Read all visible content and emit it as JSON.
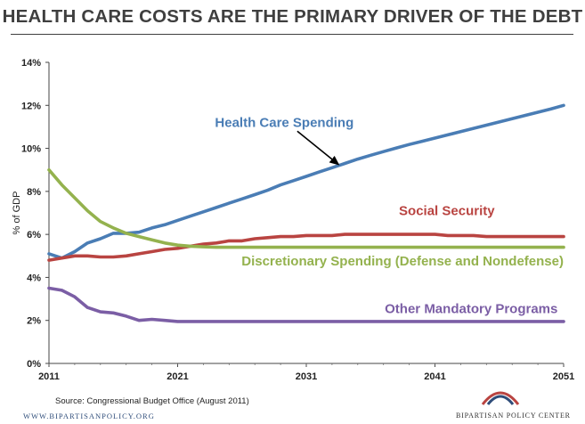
{
  "header": {
    "title": "HEALTH CARE COSTS ARE THE PRIMARY DRIVER OF THE DEBT"
  },
  "chart_data": {
    "type": "line",
    "title": "HEALTH CARE COSTS ARE THE PRIMARY DRIVER OF THE DEBT",
    "xlabel": "",
    "ylabel": "% of GDP",
    "xlim": [
      2011,
      2051
    ],
    "ylim": [
      0,
      14
    ],
    "x_ticks": [
      "2011",
      "2021",
      "2031",
      "2041",
      "2051"
    ],
    "y_ticks": [
      "0%",
      "2%",
      "4%",
      "6%",
      "8%",
      "10%",
      "12%",
      "14%"
    ],
    "grid": false,
    "x": [
      2011,
      2012,
      2013,
      2014,
      2015,
      2016,
      2017,
      2018,
      2019,
      2020,
      2021,
      2022,
      2023,
      2024,
      2025,
      2026,
      2027,
      2028,
      2029,
      2030,
      2031,
      2032,
      2033,
      2034,
      2035,
      2036,
      2037,
      2038,
      2039,
      2040,
      2041,
      2042,
      2043,
      2044,
      2045,
      2046,
      2047,
      2048,
      2049,
      2050,
      2051
    ],
    "series": [
      {
        "name": "Health Care Spending",
        "color": "#4a7db5",
        "values": [
          5.1,
          4.9,
          5.2,
          5.6,
          5.8,
          6.05,
          6.05,
          6.1,
          6.3,
          6.45,
          6.65,
          6.85,
          7.05,
          7.25,
          7.45,
          7.65,
          7.85,
          8.05,
          8.3,
          8.5,
          8.7,
          8.9,
          9.1,
          9.3,
          9.5,
          9.68,
          9.85,
          10.02,
          10.18,
          10.33,
          10.48,
          10.63,
          10.78,
          10.93,
          11.08,
          11.23,
          11.38,
          11.53,
          11.68,
          11.83,
          12.0
        ]
      },
      {
        "name": "Social Security",
        "color": "#b94441",
        "values": [
          4.8,
          4.9,
          5.0,
          5.0,
          4.95,
          4.95,
          5.0,
          5.1,
          5.2,
          5.3,
          5.35,
          5.45,
          5.55,
          5.6,
          5.7,
          5.7,
          5.8,
          5.85,
          5.9,
          5.9,
          5.95,
          5.95,
          5.95,
          6.0,
          6.0,
          6.0,
          6.0,
          6.0,
          6.0,
          6.0,
          6.0,
          5.95,
          5.95,
          5.95,
          5.9,
          5.9,
          5.9,
          5.9,
          5.9,
          5.9,
          5.9
        ]
      },
      {
        "name": "Discretionary Spending (Defense and Nondefense)",
        "color": "#94b24e",
        "values": [
          9.0,
          8.3,
          7.7,
          7.1,
          6.6,
          6.3,
          6.05,
          5.9,
          5.75,
          5.6,
          5.5,
          5.45,
          5.42,
          5.4,
          5.4,
          5.4,
          5.4,
          5.4,
          5.4,
          5.4,
          5.4,
          5.4,
          5.4,
          5.4,
          5.4,
          5.4,
          5.4,
          5.4,
          5.4,
          5.4,
          5.4,
          5.4,
          5.4,
          5.4,
          5.4,
          5.4,
          5.4,
          5.4,
          5.4,
          5.4,
          5.4
        ]
      },
      {
        "name": "Other Mandatory Programs",
        "color": "#7b5ea5",
        "values": [
          3.5,
          3.4,
          3.1,
          2.6,
          2.4,
          2.35,
          2.2,
          2.0,
          2.05,
          2.0,
          1.95,
          1.95,
          1.95,
          1.95,
          1.95,
          1.95,
          1.95,
          1.95,
          1.95,
          1.95,
          1.95,
          1.95,
          1.95,
          1.95,
          1.95,
          1.95,
          1.95,
          1.95,
          1.95,
          1.95,
          1.95,
          1.95,
          1.95,
          1.95,
          1.95,
          1.95,
          1.95,
          1.95,
          1.95,
          1.95,
          1.95
        ]
      }
    ],
    "annotations": [
      {
        "type": "arrow",
        "from": [
          2030.3,
          10.8
        ],
        "to": [
          2033.5,
          9.25
        ]
      }
    ]
  },
  "footer": {
    "source": "Source: Congressional Budget Office (August 2011)",
    "website": "WWW.BIPARTISANPOLICY.ORG",
    "org_name": "BIPARTISAN POLICY CENTER",
    "logo_colors": [
      "#b94441",
      "#2f4d7a"
    ]
  }
}
